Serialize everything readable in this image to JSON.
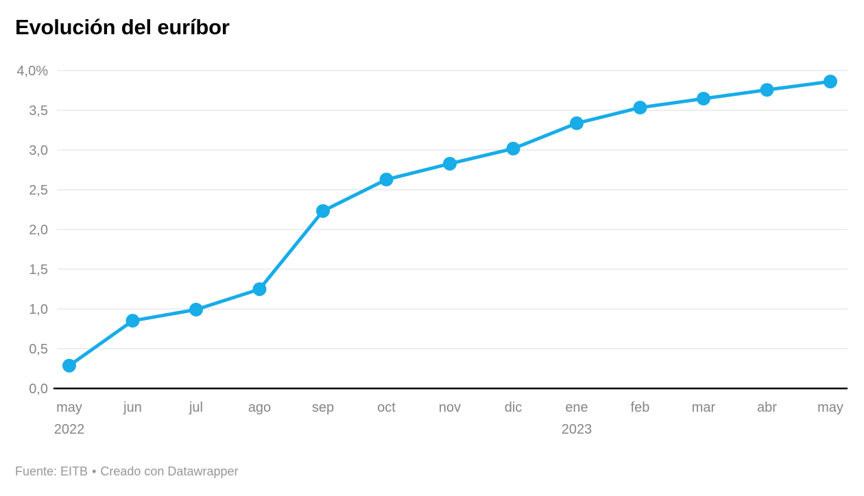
{
  "title": "Evolución del euríbor",
  "footer": {
    "source": "Fuente: EITB",
    "separator": "•",
    "credit": "Creado con Datawrapper"
  },
  "colors": {
    "line": "#18ace8",
    "grid": "#dddddd",
    "baseline": "#000000",
    "axis_text": "#858585",
    "footer_text": "#979797",
    "title_text": "#000000",
    "background": "#ffffff"
  },
  "chart_data": {
    "type": "line",
    "title": "Evolución del euríbor",
    "x": [
      "may",
      "jun",
      "jul",
      "ago",
      "sep",
      "oct",
      "nov",
      "dic",
      "ene",
      "feb",
      "mar",
      "abr",
      "may"
    ],
    "x_year_labels": [
      {
        "index": 0,
        "label": "2022"
      },
      {
        "index": 8,
        "label": "2023"
      }
    ],
    "values": [
      0.287,
      0.852,
      0.992,
      1.249,
      2.233,
      2.629,
      2.828,
      3.018,
      3.337,
      3.534,
      3.647,
      3.757,
      3.862
    ],
    "unit": "%",
    "xlabel": "",
    "ylabel": "",
    "ylim": [
      0,
      4.0
    ],
    "ytick_step": 0.5,
    "ytick_labels": [
      "0,0",
      "0,5",
      "1,0",
      "1,5",
      "2,0",
      "2,5",
      "3,0",
      "3,5",
      "4,0%"
    ],
    "grid": "horizontal",
    "legend": "none",
    "marker": "circle"
  }
}
